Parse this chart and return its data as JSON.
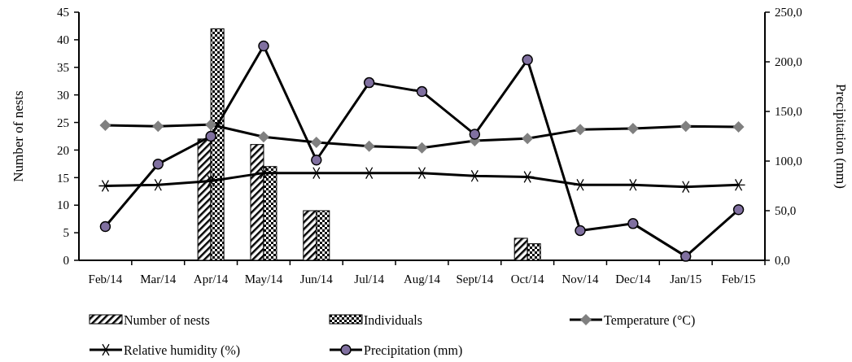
{
  "chart_data": {
    "type": "bar",
    "ylabel": "Number of nests",
    "y2label": "Precipitation (mm)",
    "categories": [
      "Feb/14",
      "Mar/14",
      "Apr/14",
      "May/14",
      "Jun/14",
      "Jul/14",
      "Aug/14",
      "Sept/14",
      "Oct/14",
      "Nov/14",
      "Dec/14",
      "Jan/15",
      "Feb/15"
    ],
    "series": [
      {
        "name": "Number of nests",
        "color": "#000000",
        "values": [
          0,
          0,
          22,
          21,
          9,
          0,
          0,
          0,
          4,
          0,
          0,
          0,
          0
        ]
      },
      {
        "name": "Individuals",
        "color": "#000000",
        "values": [
          0,
          0,
          42,
          17,
          9,
          0,
          0,
          0,
          3,
          0,
          0,
          0,
          0
        ]
      },
      {
        "name": "Temperature (°C)",
        "type": "line",
        "color": "#808080",
        "marker": "diamond",
        "values": [
          24.5,
          24.3,
          24.6,
          22.4,
          21.4,
          20.7,
          20.4,
          21.7,
          22.1,
          23.7,
          23.9,
          24.3,
          24.2
        ]
      },
      {
        "name": "Relative humidity (%)",
        "type": "line",
        "axis": "y2",
        "color": "#000000",
        "marker": "cross",
        "values": [
          75,
          76,
          80,
          88,
          88,
          88,
          88,
          85,
          84,
          76,
          76,
          74,
          76
        ]
      },
      {
        "name": "Precipitation (mm)",
        "type": "line",
        "axis": "y2",
        "color": "#8070a0",
        "marker": "circle",
        "values": [
          34,
          97,
          125,
          216,
          101,
          179,
          170,
          127,
          202,
          30,
          37,
          4,
          51
        ]
      }
    ],
    "ylim": [
      0,
      45
    ],
    "yticks": [
      0,
      5,
      10,
      15,
      20,
      25,
      30,
      35,
      40,
      45
    ],
    "y2lim": [
      0,
      250
    ],
    "y2ticks": [
      {
        "value": 0,
        "label": "0,0"
      },
      {
        "value": 50,
        "label": "50,0"
      },
      {
        "value": 100,
        "label": "100,0"
      },
      {
        "value": 150,
        "label": "150,0"
      },
      {
        "value": 200,
        "label": "200,0"
      },
      {
        "value": 250,
        "label": "250,0"
      }
    ],
    "grid": false,
    "legend": "bottom"
  }
}
